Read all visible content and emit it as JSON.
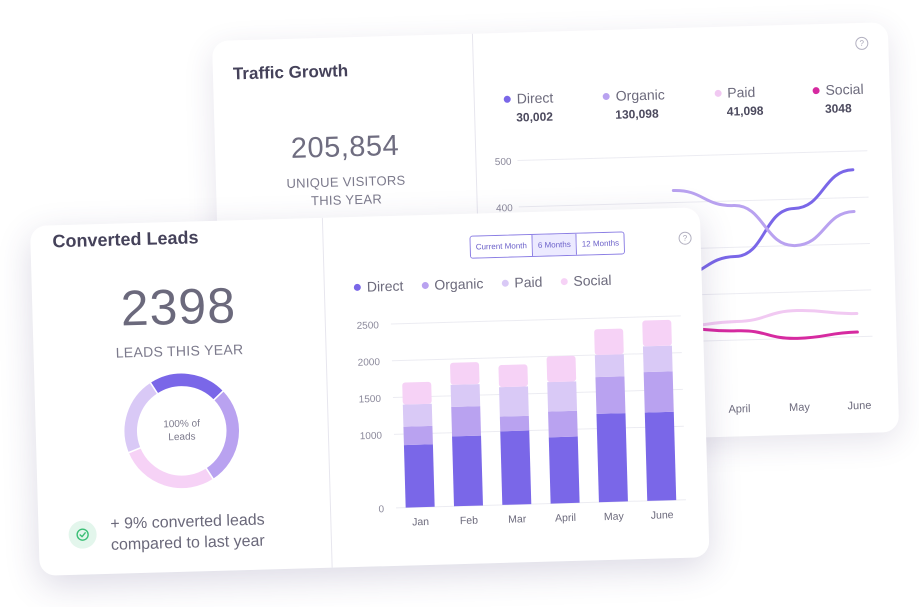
{
  "traffic": {
    "title": "Traffic Growth",
    "total": "205,854",
    "total_label_line1": "UNIQUE VISITORS",
    "total_label_line2": "THIS YEAR",
    "help": "?",
    "legend": [
      {
        "name": "Direct",
        "value": "30,002",
        "color": "#7a67e8"
      },
      {
        "name": "Organic",
        "value": "130,098",
        "color": "#b9a2f0"
      },
      {
        "name": "Paid",
        "value": "41,098",
        "color": "#f1c9f2"
      },
      {
        "name": "Social",
        "value": "3048",
        "color": "#d62aa0"
      }
    ]
  },
  "leads": {
    "title": "Converted Leads",
    "total": "2398",
    "total_label": "LEADS THIS YEAR",
    "donut_line1": "100% of",
    "donut_line2": "Leads",
    "note_line1": "+ 9% converted leads",
    "note_line2": "compared to last year",
    "help": "?",
    "tabs": [
      {
        "label": "Current Month",
        "active": false
      },
      {
        "label": "6 Months",
        "active": true
      },
      {
        "label": "12 Months",
        "active": false
      }
    ],
    "legend": [
      {
        "name": "Direct",
        "color": "#7a67e8"
      },
      {
        "name": "Organic",
        "color": "#b9a2f0"
      },
      {
        "name": "Paid",
        "color": "#d9c9f6"
      },
      {
        "name": "Social",
        "color": "#f6d2f6"
      }
    ],
    "donut_segments": [
      {
        "name": "Direct",
        "share": 0.22,
        "color": "#7a67e8"
      },
      {
        "name": "Organic",
        "share": 0.28,
        "color": "#b9a2f0"
      },
      {
        "name": "Social",
        "share": 0.28,
        "color": "#f6d2f6"
      },
      {
        "name": "Paid",
        "share": 0.22,
        "color": "#d9c9f6"
      }
    ]
  },
  "chart_data": [
    {
      "type": "line",
      "categories": [
        "April",
        "May",
        "June"
      ],
      "ylim": [
        0,
        500
      ],
      "yticks": [
        "500",
        "400"
      ],
      "grid": true,
      "series": [
        {
          "name": "Direct",
          "color": "#7a67e8",
          "values": [
            280,
            380,
            460
          ]
        },
        {
          "name": "Organic",
          "color": "#b9a2f0",
          "values": [
            390,
            300,
            370
          ]
        },
        {
          "name": "Paid",
          "color": "#f1c9f2",
          "values": [
            140,
            160,
            150
          ]
        },
        {
          "name": "Social",
          "color": "#d62aa0",
          "values": [
            120,
            100,
            110
          ]
        }
      ]
    },
    {
      "type": "bar",
      "stacked": true,
      "categories": [
        "Jan",
        "Feb",
        "Mar",
        "April",
        "May",
        "June"
      ],
      "ylim": [
        0,
        2500
      ],
      "yticks": [
        "0",
        "1000",
        "1500",
        "2000",
        "2500"
      ],
      "grid": true,
      "series": [
        {
          "name": "Direct",
          "color": "#7a67e8",
          "values": [
            850,
            950,
            1000,
            900,
            1200,
            1200
          ]
        },
        {
          "name": "Organic",
          "color": "#b9a2f0",
          "values": [
            250,
            400,
            200,
            350,
            500,
            550
          ]
        },
        {
          "name": "Paid",
          "color": "#d9c9f6",
          "values": [
            300,
            300,
            400,
            400,
            300,
            350
          ]
        },
        {
          "name": "Social",
          "color": "#f6d2f6",
          "values": [
            300,
            300,
            300,
            350,
            350,
            350
          ]
        }
      ]
    }
  ]
}
